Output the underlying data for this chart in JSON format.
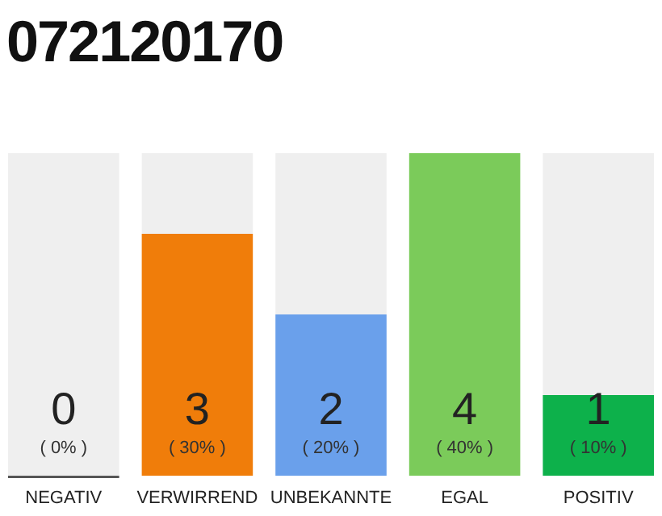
{
  "chart_data": {
    "type": "bar",
    "title": "072120170",
    "categories": [
      "NEGATIV",
      "VERWIRREND",
      "UNBEKANNTE",
      "EGAL",
      "POSITIV"
    ],
    "stacked": true,
    "series": [
      {
        "colors": [
          "#555555",
          "#f07d0a",
          "#6aa0eb",
          "#7bcb5a",
          "#0db14b"
        ],
        "values": [
          0,
          3,
          2,
          4,
          1
        ],
        "value_labels": [
          "0",
          "3",
          "2",
          "4",
          "1"
        ]
      },
      {
        "color": "#efefef",
        "values": [
          4,
          1,
          2,
          0,
          3
        ],
        "value_labels": [
          null,
          null,
          null,
          null,
          null
        ]
      }
    ],
    "annotations": [
      "( 0% )",
      "( 30% )",
      "( 20% )",
      "( 40% )",
      "( 10% )"
    ]
  }
}
